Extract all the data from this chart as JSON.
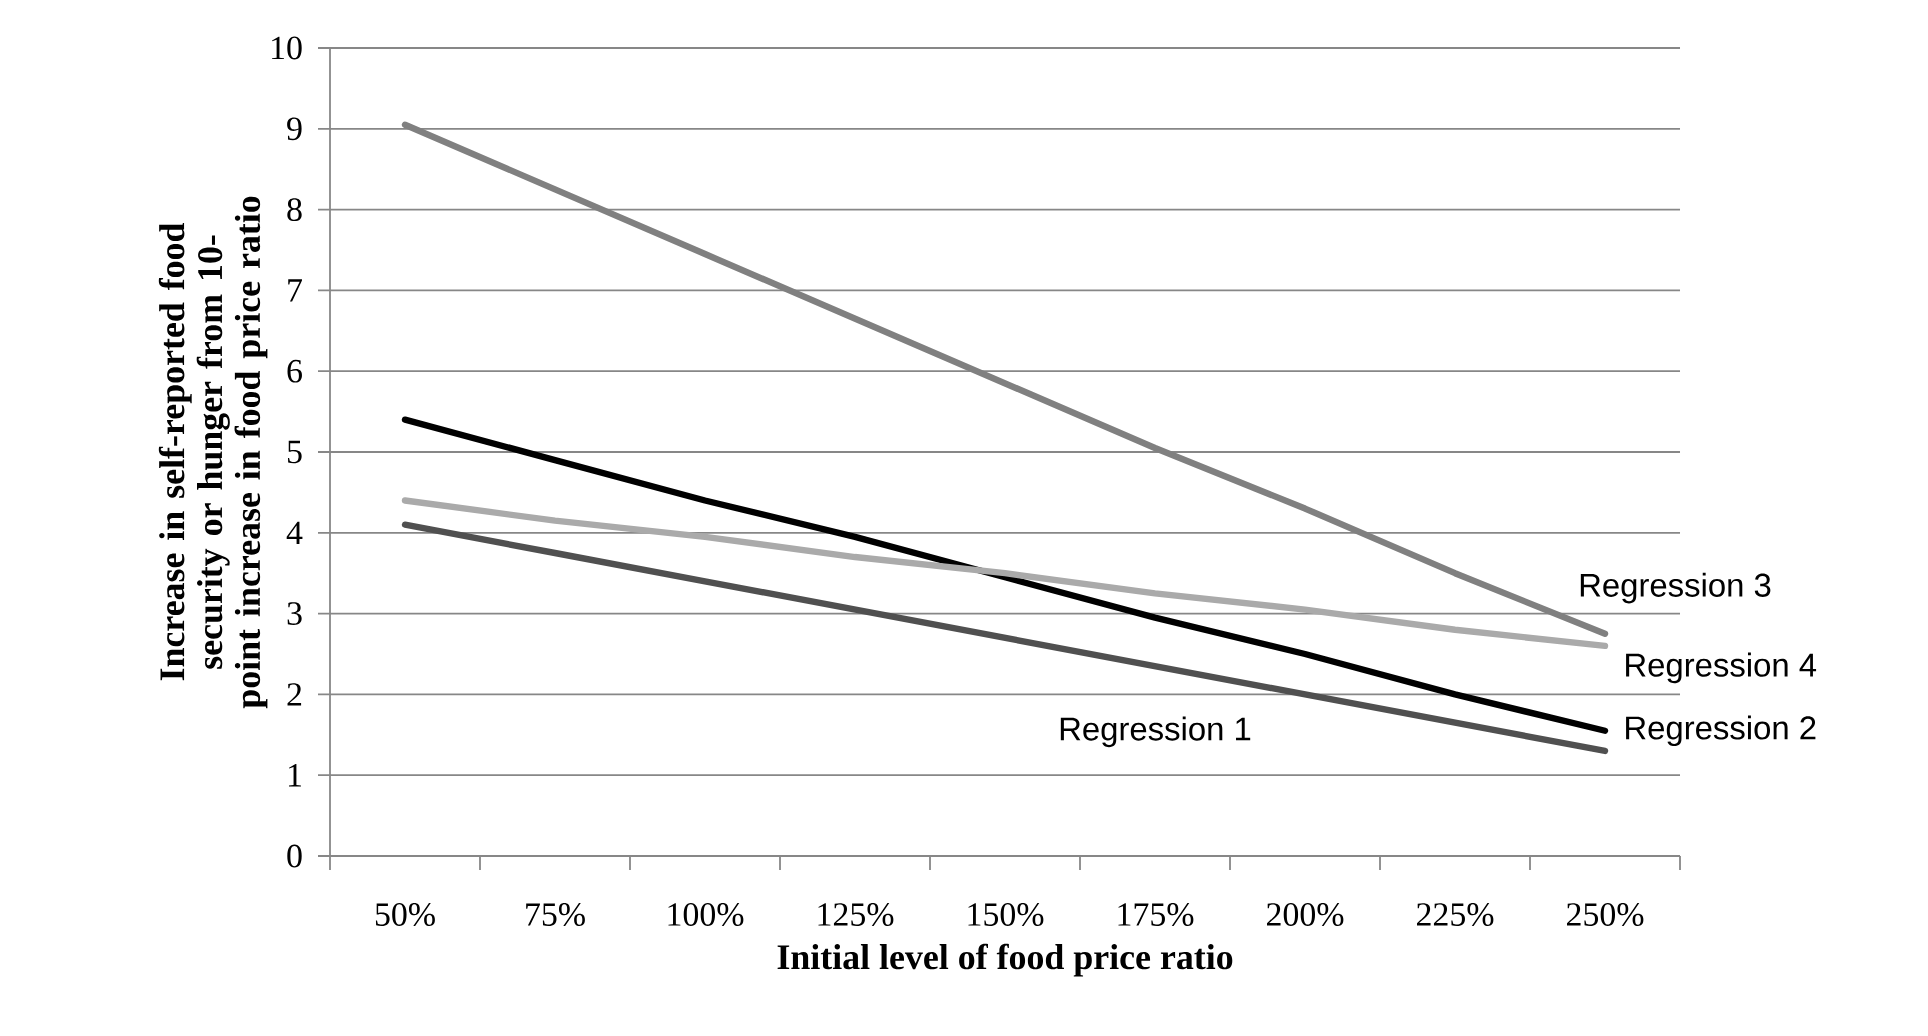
{
  "chart_data": {
    "type": "line",
    "xlabel": "Initial level of food price ratio",
    "ylabel": "Increase in self-reported food security or hunger from 10-point increase in food price ratio",
    "categories": [
      "50%",
      "75%",
      "100%",
      "125%",
      "150%",
      "175%",
      "200%",
      "225%",
      "250%"
    ],
    "series": [
      {
        "name": "Regression 1",
        "color": "#505050",
        "values": [
          4.1,
          3.75,
          3.4,
          3.05,
          2.7,
          2.35,
          2.0,
          1.65,
          1.3
        ]
      },
      {
        "name": "Regression 2",
        "color": "#000000",
        "values": [
          5.4,
          4.9,
          4.4,
          3.95,
          3.45,
          2.95,
          2.5,
          2.0,
          1.55
        ]
      },
      {
        "name": "Regression 3",
        "color": "#808080",
        "values": [
          9.05,
          8.25,
          7.45,
          6.65,
          5.85,
          5.05,
          4.3,
          3.5,
          2.75
        ]
      },
      {
        "name": "Regression 4",
        "color": "#aaaaaa",
        "values": [
          4.4,
          4.15,
          3.95,
          3.7,
          3.5,
          3.25,
          3.05,
          2.8,
          2.6
        ]
      }
    ],
    "ylim": [
      0,
      10
    ],
    "yticks": [
      0,
      1,
      2,
      3,
      4,
      5,
      6,
      7,
      8,
      9,
      10
    ],
    "grid": "y",
    "marker": "none",
    "line_style": "solid"
  }
}
